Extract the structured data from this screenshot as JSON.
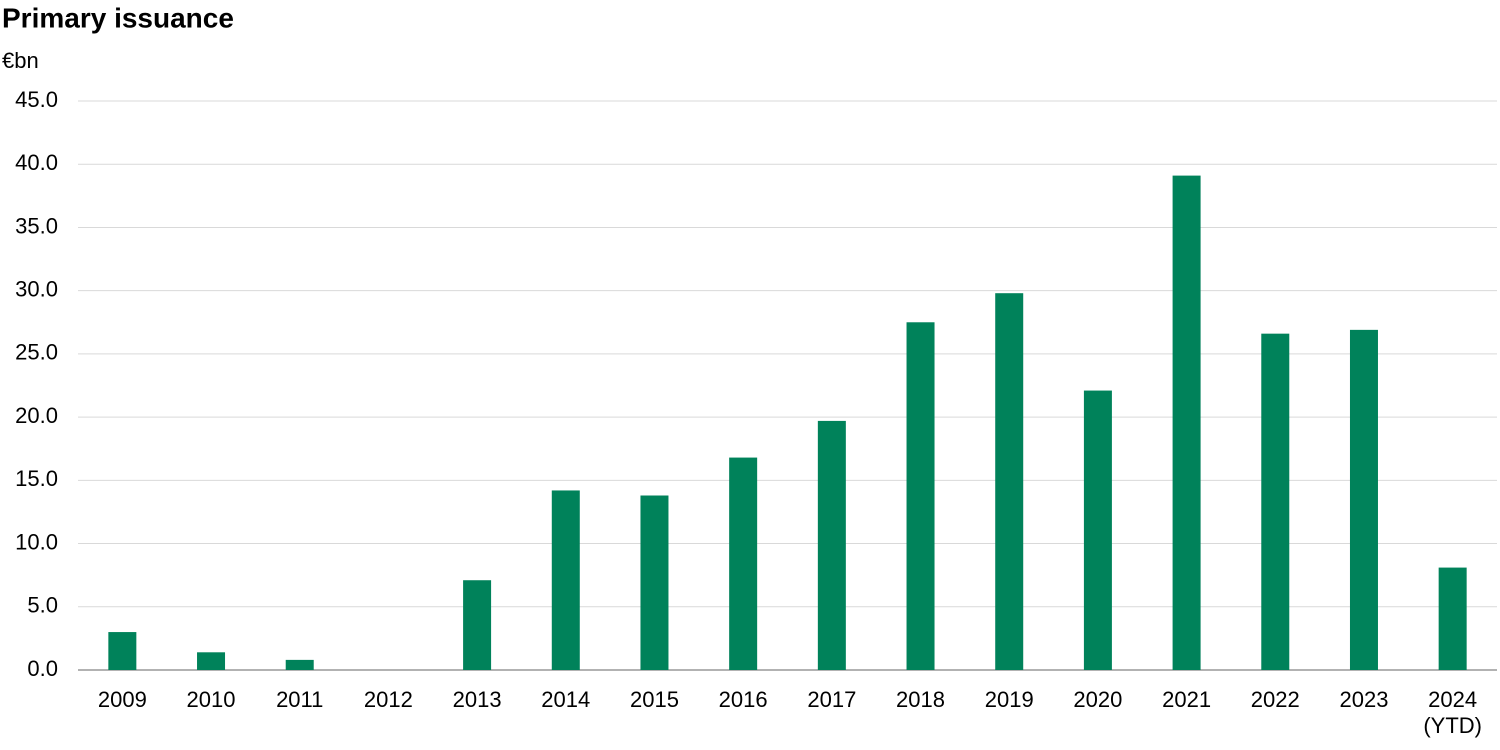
{
  "chart_data": {
    "type": "bar",
    "title": "Primary issuance",
    "y_label": "€bn",
    "categories": [
      "2009",
      "2010",
      "2011",
      "2012",
      "2013",
      "2014",
      "2015",
      "2016",
      "2017",
      "2018",
      "2019",
      "2020",
      "2021",
      "2022",
      "2023",
      "2024\n(YTD)"
    ],
    "values": [
      3.0,
      1.4,
      0.8,
      0,
      7.1,
      14.2,
      13.8,
      16.8,
      19.7,
      27.5,
      29.8,
      22.1,
      39.1,
      26.6,
      26.9,
      8.1
    ],
    "color": "#00825a",
    "ylim": [
      0,
      45
    ],
    "yticks": [
      {
        "value": 0,
        "label": "0.0"
      },
      {
        "value": 5,
        "label": "5.0"
      },
      {
        "value": 10,
        "label": "10.0"
      },
      {
        "value": 15,
        "label": "15.0"
      },
      {
        "value": 20,
        "label": "20.0"
      },
      {
        "value": 25,
        "label": "25.0"
      },
      {
        "value": 30,
        "label": "30.0"
      },
      {
        "value": 35,
        "label": "35.0"
      },
      {
        "value": 40,
        "label": "40.0"
      },
      {
        "value": 45,
        "label": "45.0"
      }
    ],
    "grid": true
  }
}
